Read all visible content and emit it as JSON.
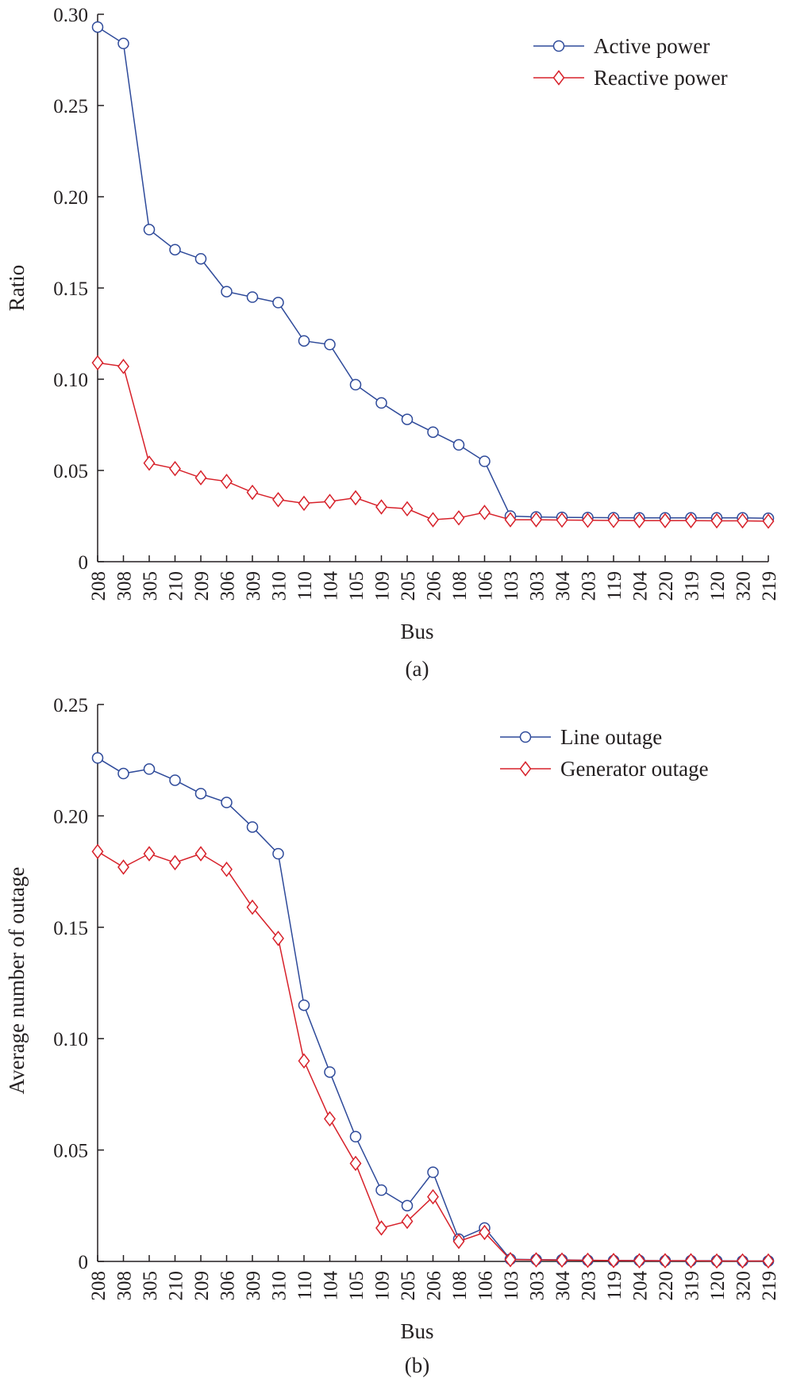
{
  "chart_data": [
    {
      "type": "line",
      "caption": "(a)",
      "xlabel": "Bus",
      "ylabel": "Ratio",
      "categories": [
        "208",
        "308",
        "305",
        "210",
        "209",
        "306",
        "309",
        "310",
        "110",
        "104",
        "105",
        "109",
        "205",
        "206",
        "108",
        "106",
        "103",
        "303",
        "304",
        "203",
        "119",
        "204",
        "220",
        "319",
        "120",
        "320",
        "219"
      ],
      "ylim": [
        0,
        0.3
      ],
      "yticks": [
        0,
        0.05,
        0.1,
        0.15,
        0.2,
        0.25,
        0.3
      ],
      "ytick_labels": [
        "0",
        "0.05",
        "0.10",
        "0.15",
        "0.20",
        "0.25",
        "0.30"
      ],
      "legend_position": "top-right",
      "grid": false,
      "series": [
        {
          "name": "Active power",
          "color": "#2e4a9a",
          "marker": "circle",
          "values": [
            0.293,
            0.284,
            0.182,
            0.171,
            0.166,
            0.148,
            0.145,
            0.142,
            0.121,
            0.119,
            0.097,
            0.087,
            0.078,
            0.071,
            0.064,
            0.055,
            0.025,
            0.0245,
            0.0243,
            0.0242,
            0.0241,
            0.024,
            0.024,
            0.024,
            0.024,
            0.024,
            0.0238
          ]
        },
        {
          "name": "Reactive power",
          "color": "#d7212a",
          "marker": "diamond",
          "values": [
            0.109,
            0.107,
            0.054,
            0.051,
            0.046,
            0.044,
            0.038,
            0.034,
            0.032,
            0.033,
            0.035,
            0.03,
            0.029,
            0.023,
            0.024,
            0.027,
            0.023,
            0.023,
            0.0228,
            0.0227,
            0.0226,
            0.0225,
            0.0225,
            0.0225,
            0.0224,
            0.0224,
            0.0222
          ]
        }
      ]
    },
    {
      "type": "line",
      "caption": "(b)",
      "xlabel": "Bus",
      "ylabel": "Average number of outage",
      "categories": [
        "208",
        "308",
        "305",
        "210",
        "209",
        "306",
        "309",
        "310",
        "110",
        "104",
        "105",
        "109",
        "205",
        "206",
        "108",
        "106",
        "103",
        "303",
        "304",
        "203",
        "119",
        "204",
        "220",
        "319",
        "120",
        "320",
        "219"
      ],
      "ylim": [
        0,
        0.25
      ],
      "yticks": [
        0,
        0.05,
        0.1,
        0.15,
        0.2,
        0.25
      ],
      "ytick_labels": [
        "0",
        "0.05",
        "0.10",
        "0.15",
        "0.20",
        "0.25"
      ],
      "legend_position": "top-right",
      "grid": false,
      "series": [
        {
          "name": "Line outage",
          "color": "#2e4a9a",
          "marker": "circle",
          "values": [
            0.226,
            0.219,
            0.221,
            0.216,
            0.21,
            0.206,
            0.195,
            0.183,
            0.115,
            0.085,
            0.056,
            0.032,
            0.025,
            0.04,
            0.01,
            0.015,
            0.001,
            0.0008,
            0.0007,
            0.0005,
            0.0004,
            0.0004,
            0.0003,
            0.0003,
            0.0003,
            0.0002,
            0.0002
          ]
        },
        {
          "name": "Generator outage",
          "color": "#d7212a",
          "marker": "diamond",
          "values": [
            0.184,
            0.177,
            0.183,
            0.179,
            0.183,
            0.176,
            0.159,
            0.145,
            0.09,
            0.064,
            0.044,
            0.015,
            0.018,
            0.029,
            0.009,
            0.013,
            0.0008,
            0.0007,
            0.0006,
            0.0005,
            0.0004,
            0.0003,
            0.0003,
            0.0003,
            0.0002,
            0.0002,
            0.0002
          ]
        }
      ]
    }
  ]
}
